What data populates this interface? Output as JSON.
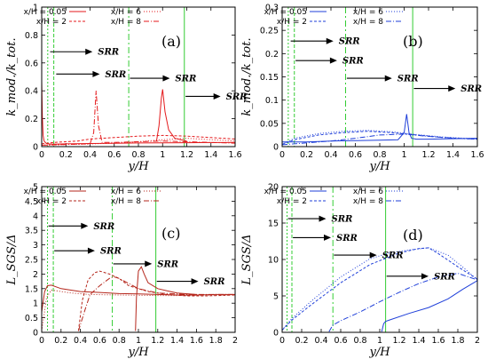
{
  "chart_data": [
    {
      "panel_label": "(a)",
      "type": "line",
      "xlabel": "y/H",
      "ylabel": "k_mod./k_tot.",
      "xlim": [
        0,
        1.6
      ],
      "ylim": [
        0,
        1
      ],
      "xticks": [
        0,
        0.2,
        0.4,
        0.6,
        0.8,
        1,
        1.2,
        1.4,
        1.6
      ],
      "xtick_labels": [
        "0",
        "0.2",
        "0.4",
        "0.6",
        "0.8",
        "1",
        "1.2",
        "1.4",
        "1.6"
      ],
      "yticks": [
        0,
        0.2,
        0.4,
        0.6,
        0.8,
        1
      ],
      "ytick_labels": [
        "0",
        "0.2",
        "0.4",
        "0.6",
        "0.8",
        "1"
      ],
      "color": "#e41a1c",
      "guide_color": "#33cc33",
      "legend": [
        "x/H = 0.05",
        "x/H = 6",
        "x/H = 2",
        "x/H = 8"
      ],
      "vlines": [
        {
          "x": 0.05,
          "dash": "2,2"
        },
        {
          "x": 0.1,
          "dash": "4,2"
        },
        {
          "x": 0.72,
          "dash": "7,3,2,3"
        },
        {
          "x": 1.18,
          "dash": ""
        }
      ],
      "annotations": [
        {
          "text": "SRR",
          "x0": 0.07,
          "x1": 0.42,
          "y": 0.68
        },
        {
          "text": "SRR",
          "x0": 0.12,
          "x1": 0.48,
          "y": 0.52
        },
        {
          "text": "SRR",
          "x0": 0.73,
          "x1": 1.06,
          "y": 0.49
        },
        {
          "text": "SRR",
          "x0": 1.19,
          "x1": 1.48,
          "y": 0.36
        }
      ],
      "series": [
        {
          "name": "x/H = 0.05",
          "dash": "",
          "x": [
            0,
            0.005,
            0.012,
            0.02,
            0.035,
            0.05,
            0.1,
            0.2,
            0.4,
            0.6,
            0.8,
            1.0,
            1.2,
            1.4,
            1.6
          ],
          "y": [
            0.47,
            0.22,
            0.08,
            0.04,
            0.025,
            0.02,
            0.018,
            0.02,
            0.022,
            0.024,
            0.026,
            0.027,
            0.028,
            0.029,
            0.03
          ]
        },
        {
          "name": "x/H = 2",
          "dash": "3,2",
          "x": [
            0,
            0.1,
            0.2,
            0.3,
            0.4,
            0.6,
            0.8,
            1.0,
            1.2,
            1.4,
            1.6
          ],
          "y": [
            0.02,
            0.03,
            0.035,
            0.04,
            0.055,
            0.065,
            0.075,
            0.08,
            0.075,
            0.065,
            0.055
          ]
        },
        {
          "name": "x/H = 6",
          "dash": "1,2",
          "x": [
            0,
            0.2,
            0.4,
            0.6,
            0.8,
            1.0,
            1.2,
            1.4,
            1.6
          ],
          "y": [
            0.01,
            0.015,
            0.02,
            0.025,
            0.035,
            0.05,
            0.06,
            0.05,
            0.04
          ]
        },
        {
          "name": "x/H = 8",
          "dash": "6,2,1,2",
          "x": [
            0,
            0.2,
            0.4,
            0.43,
            0.45,
            0.47,
            0.5,
            0.6,
            0.8,
            1.0,
            1.2,
            1.4,
            1.6
          ],
          "y": [
            0.01,
            0.015,
            0.02,
            0.1,
            0.4,
            0.15,
            0.03,
            0.03,
            0.035,
            0.04,
            0.035,
            0.03,
            0.025
          ]
        },
        {
          "name": "x/H = 0.05 peak",
          "dash": "",
          "x": [
            0.95,
            0.97,
            0.99,
            1.0,
            1.02,
            1.05,
            1.1,
            1.2
          ],
          "y": [
            0.04,
            0.15,
            0.35,
            0.41,
            0.25,
            0.12,
            0.06,
            0.04
          ]
        }
      ]
    },
    {
      "panel_label": "(b)",
      "type": "line",
      "xlabel": "y/H",
      "ylabel": "k_mod./k_tot.",
      "xlim": [
        0,
        1.6
      ],
      "ylim": [
        0,
        0.3
      ],
      "xticks": [
        0,
        0.2,
        0.4,
        0.6,
        0.8,
        1,
        1.2,
        1.4,
        1.6
      ],
      "xtick_labels": [
        "0",
        "0.2",
        "0.4",
        "0.6",
        "0.8",
        "1",
        "1.2",
        "1.4",
        "1.6"
      ],
      "yticks": [
        0,
        0.05,
        0.1,
        0.15,
        0.2,
        0.25,
        0.3
      ],
      "ytick_labels": [
        "0",
        "0.05",
        "0.1",
        "0.15",
        "0.2",
        "0.25",
        "0.3"
      ],
      "color": "#1f3fd9",
      "guide_color": "#33cc33",
      "legend": [
        "x/H = 0.05",
        "x/H = 6",
        "x/H = 2",
        "x/H = 8"
      ],
      "vlines": [
        {
          "x": 0.05,
          "dash": "2,2"
        },
        {
          "x": 0.1,
          "dash": "4,2"
        },
        {
          "x": 0.52,
          "dash": "7,3,2,3"
        },
        {
          "x": 1.07,
          "dash": ""
        }
      ],
      "annotations": [
        {
          "text": "SRR",
          "x0": 0.07,
          "x1": 0.42,
          "y": 0.227
        },
        {
          "text": "SRR",
          "x0": 0.11,
          "x1": 0.45,
          "y": 0.185
        },
        {
          "text": "SRR",
          "x0": 0.53,
          "x1": 0.9,
          "y": 0.147
        },
        {
          "text": "SRR",
          "x0": 1.08,
          "x1": 1.42,
          "y": 0.125
        }
      ],
      "series": [
        {
          "name": "x/H = 0.05",
          "dash": "",
          "x": [
            0,
            0.2,
            0.4,
            0.6,
            0.8,
            0.95,
            1.0,
            1.02,
            1.04,
            1.06,
            1.1,
            1.2,
            1.4,
            1.6
          ],
          "y": [
            0.01,
            0.01,
            0.012,
            0.013,
            0.014,
            0.015,
            0.03,
            0.07,
            0.03,
            0.018,
            0.016,
            0.016,
            0.017,
            0.018
          ]
        },
        {
          "name": "x/H = 2",
          "dash": "3,2",
          "x": [
            0,
            0.1,
            0.3,
            0.5,
            0.7,
            0.9,
            1.1,
            1.3,
            1.5,
            1.6
          ],
          "y": [
            0.005,
            0.015,
            0.025,
            0.03,
            0.033,
            0.03,
            0.025,
            0.02,
            0.017,
            0.016
          ]
        },
        {
          "name": "x/H = 6",
          "dash": "1,2",
          "x": [
            0,
            0.1,
            0.3,
            0.5,
            0.7,
            0.9,
            1.1,
            1.3,
            1.5,
            1.6
          ],
          "y": [
            0.005,
            0.018,
            0.028,
            0.033,
            0.035,
            0.032,
            0.026,
            0.021,
            0.018,
            0.017
          ]
        },
        {
          "name": "x/H = 8",
          "dash": "6,2,1,2",
          "x": [
            0,
            0.2,
            0.4,
            0.6,
            0.8,
            1.0,
            1.2,
            1.4,
            1.6
          ],
          "y": [
            0.004,
            0.008,
            0.012,
            0.018,
            0.025,
            0.027,
            0.022,
            0.018,
            0.016
          ]
        }
      ]
    },
    {
      "panel_label": "(c)",
      "type": "line",
      "xlabel": "y/H",
      "ylabel": "L_SGS/Δ",
      "xlim": [
        0,
        2
      ],
      "ylim": [
        0,
        5
      ],
      "xticks": [
        0,
        0.2,
        0.4,
        0.6,
        0.8,
        1,
        1.2,
        1.4,
        1.6,
        1.8,
        2
      ],
      "xtick_labels": [
        "0",
        "0.2",
        "0.4",
        "0.6",
        "0.8",
        "1",
        "1.2",
        "1.4",
        "1.6",
        "1.8",
        "2"
      ],
      "yticks": [
        0,
        0.5,
        1,
        1.5,
        2,
        2.5,
        3,
        3.5,
        4,
        4.5,
        5
      ],
      "ytick_labels": [
        "0",
        "0.5",
        "1",
        "1.5",
        "2",
        "2.5",
        "3",
        "3.5",
        "4",
        "4.5",
        "5"
      ],
      "color": "#b5271c",
      "guide_color": "#33cc33",
      "legend": [
        "x/H = 0.05",
        "x/H = 6",
        "x/H = 2",
        "x/H = 8"
      ],
      "vlines": [
        {
          "x": 0.06,
          "dash": "2,2"
        },
        {
          "x": 0.12,
          "dash": "4,2"
        },
        {
          "x": 0.73,
          "dash": "7,3,2,3"
        },
        {
          "x": 1.18,
          "dash": ""
        }
      ],
      "annotations": [
        {
          "text": "SRR",
          "x0": 0.07,
          "x1": 0.48,
          "y": 3.65
        },
        {
          "text": "SRR",
          "x0": 0.13,
          "x1": 0.55,
          "y": 2.8
        },
        {
          "text": "SRR",
          "x0": 0.74,
          "x1": 1.14,
          "y": 2.35
        },
        {
          "text": "SRR",
          "x0": 1.19,
          "x1": 1.62,
          "y": 1.75
        }
      ],
      "series": [
        {
          "name": "x/H = 0.05",
          "dash": "",
          "x": [
            0,
            0.03,
            0.06,
            0.1,
            0.2,
            0.4,
            0.6,
            0.8,
            1.0,
            1.2,
            1.4,
            1.6,
            1.8,
            2.0
          ],
          "y": [
            0.7,
            1.4,
            1.6,
            1.62,
            1.5,
            1.4,
            1.37,
            1.33,
            1.32,
            1.3,
            1.28,
            1.28,
            1.3,
            1.3
          ]
        },
        {
          "name": "x/H = 2",
          "dash": "3,2",
          "x": [
            0.38,
            0.42,
            0.48,
            0.55,
            0.6,
            0.7,
            0.8,
            0.9,
            1.1,
            1.3,
            1.5,
            1.7,
            2.0
          ],
          "y": [
            0.05,
            1.1,
            1.8,
            2.05,
            2.1,
            2.0,
            1.85,
            1.6,
            1.4,
            1.3,
            1.25,
            1.25,
            1.28
          ]
        },
        {
          "name": "x/H = 6",
          "dash": "1,2",
          "x": [
            0,
            0.05,
            0.1,
            0.3,
            0.5,
            0.8,
            1.0,
            1.3,
            1.6,
            2.0
          ],
          "y": [
            0.05,
            1.2,
            1.45,
            1.35,
            1.3,
            1.28,
            1.27,
            1.26,
            1.27,
            1.28
          ]
        },
        {
          "name": "x/H = 8",
          "dash": "6,2,1,2",
          "x": [
            0.38,
            0.45,
            0.5,
            0.6,
            0.7,
            0.75,
            0.8,
            1.0,
            1.2,
            1.5,
            2.0
          ],
          "y": [
            0.05,
            0.8,
            1.3,
            1.6,
            1.85,
            1.9,
            1.85,
            1.5,
            1.35,
            1.3,
            1.3
          ]
        },
        {
          "name": "x/H = 0.05 peak",
          "dash": "",
          "x": [
            0.97,
            0.98,
            1.0,
            1.03,
            1.06,
            1.1,
            1.2,
            1.3,
            1.4,
            1.6
          ],
          "y": [
            0.05,
            1.2,
            2.1,
            2.25,
            2.0,
            1.7,
            1.5,
            1.42,
            1.35,
            1.3
          ]
        }
      ]
    },
    {
      "panel_label": "(d)",
      "type": "line",
      "xlabel": "y/H",
      "ylabel": "L_SGS/Δ",
      "xlim": [
        0,
        2
      ],
      "ylim": [
        0,
        20
      ],
      "xticks": [
        0,
        0.2,
        0.4,
        0.6,
        0.8,
        1,
        1.2,
        1.4,
        1.6,
        1.8,
        2
      ],
      "xtick_labels": [
        "0",
        "0.2",
        "0.4",
        "0.6",
        "0.8",
        "1",
        "1.2",
        "1.4",
        "1.6",
        "1.8",
        "2"
      ],
      "yticks": [
        0,
        5,
        10,
        15,
        20
      ],
      "ytick_labels": [
        "0",
        "5",
        "10",
        "15",
        "20"
      ],
      "color": "#1f3fd9",
      "guide_color": "#33cc33",
      "legend": [
        "x/H = 0.05",
        "x/H = 6",
        "x/H = 2",
        "x/H = 8"
      ],
      "vlines": [
        {
          "x": 0.05,
          "dash": "2,2"
        },
        {
          "x": 0.1,
          "dash": "4,2"
        },
        {
          "x": 0.52,
          "dash": "7,3,2,3"
        },
        {
          "x": 1.06,
          "dash": ""
        }
      ],
      "annotations": [
        {
          "text": "SRR",
          "x0": 0.06,
          "x1": 0.45,
          "y": 15.6
        },
        {
          "text": "SRR",
          "x0": 0.11,
          "x1": 0.5,
          "y": 13.0
        },
        {
          "text": "SRR",
          "x0": 0.53,
          "x1": 0.97,
          "y": 10.6
        },
        {
          "text": "SRR",
          "x0": 1.07,
          "x1": 1.5,
          "y": 7.7
        }
      ],
      "series": [
        {
          "name": "x/H = 0.05",
          "dash": "",
          "x": [
            1.02,
            1.04,
            1.06,
            1.1,
            1.3,
            1.5,
            1.7,
            1.85,
            2.0
          ],
          "y": [
            0.1,
            1.2,
            1.5,
            1.7,
            2.6,
            3.4,
            4.6,
            5.9,
            7.1
          ]
        },
        {
          "name": "x/H = 2",
          "dash": "3,2",
          "x": [
            0,
            0.1,
            0.3,
            0.6,
            0.9,
            1.2,
            1.4,
            1.5,
            1.6,
            1.8,
            2.0
          ],
          "y": [
            0.3,
            1.7,
            3.8,
            6.8,
            9.3,
            10.9,
            11.5,
            11.6,
            10.8,
            9.0,
            7.3
          ]
        },
        {
          "name": "x/H = 6",
          "dash": "1,2",
          "x": [
            0,
            0.1,
            0.3,
            0.6,
            0.9,
            1.1,
            1.3,
            1.5,
            1.7,
            1.9,
            2.0
          ],
          "y": [
            0.3,
            1.9,
            4.3,
            7.6,
            10.1,
            10.9,
            11.3,
            11.6,
            10.6,
            8.4,
            7.2
          ]
        },
        {
          "name": "x/H = 8",
          "dash": "6,2,1,2",
          "x": [
            0.48,
            0.52,
            0.6,
            0.8,
            1.0,
            1.2,
            1.4,
            1.6,
            1.8,
            2.0
          ],
          "y": [
            0.1,
            1.0,
            1.6,
            2.8,
            4.2,
            5.5,
            6.7,
            7.6,
            8.1,
            7.2
          ]
        }
      ]
    }
  ]
}
